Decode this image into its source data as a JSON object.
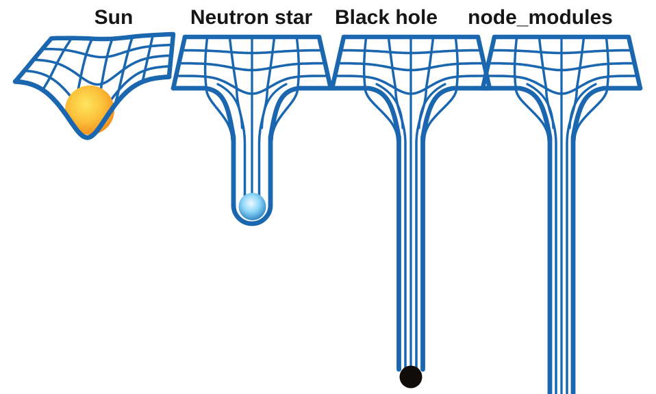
{
  "figure_type": "gravity well comparison diagram (spacetime curvature meme)",
  "background": "#ffffff",
  "colors": {
    "grid_blue": "#1a67b0",
    "title_text": "#161616",
    "sun_core": "#ffe560",
    "sun_mid": "#fcc23a",
    "sun_edge": "#f2891d",
    "neutron_core": "#eef9ff",
    "neutron_mid": "#8ed7f8",
    "neutron_edge": "#1973b8",
    "black_hole_dot": "#0f0c0a"
  },
  "panels": [
    {
      "id": "sun",
      "label": "Sun",
      "well_depth": "shallow dip",
      "object": "large yellow-orange sphere resting in dip"
    },
    {
      "id": "neutron-star",
      "label": "Neutron star",
      "well_depth": "deep narrow tube ending mid-image",
      "object": "small light-blue sphere at tube bottom"
    },
    {
      "id": "black-hole",
      "label": "Black hole",
      "well_depth": "very deep tube ending near bottom of image",
      "object": "solid black dot at tube bottom"
    },
    {
      "id": "node_modules",
      "label": "node_modules",
      "well_depth": "bottomless; tube runs off the bottom edge",
      "object": "none"
    }
  ]
}
